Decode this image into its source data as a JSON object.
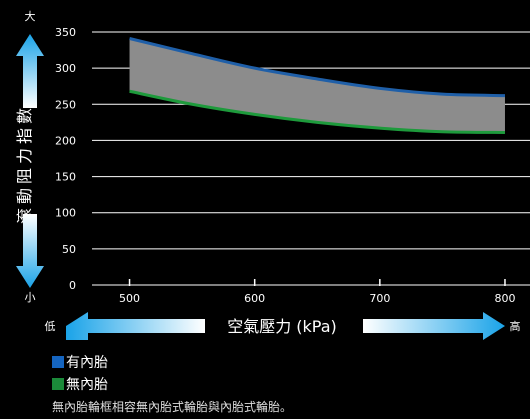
{
  "chart_data": {
    "type": "area",
    "x": [
      500,
      550,
      600,
      650,
      700,
      750,
      800
    ],
    "xlim": [
      470,
      820
    ],
    "ylim": [
      0,
      350
    ],
    "yticks": [
      0,
      50,
      100,
      150,
      200,
      250,
      300,
      350
    ],
    "xticks": [
      500,
      600,
      700,
      800
    ],
    "series": [
      {
        "name": "有內胎",
        "color": "#1f5fa8",
        "values": [
          341,
          320,
          300,
          285,
          272,
          264,
          262
        ]
      },
      {
        "name": "無內胎",
        "color": "#1e9a3c",
        "values": [
          268,
          250,
          236,
          225,
          217,
          212,
          211
        ]
      }
    ],
    "band_fill": "#8c8c8c",
    "ylabel": "滾動阻力指數",
    "y_high_label": "大",
    "y_low_label": "小",
    "xlabel": "空氣壓力 (kPa)",
    "x_low_label": "低",
    "x_high_label": "高",
    "grid": true
  },
  "legend": [
    {
      "label": "有內胎",
      "color": "#1565c0"
    },
    {
      "label": "無內胎",
      "color": "#1b8a3a"
    }
  ],
  "note": "無內胎輪框相容無內胎式輪胎與內胎式輪胎。"
}
